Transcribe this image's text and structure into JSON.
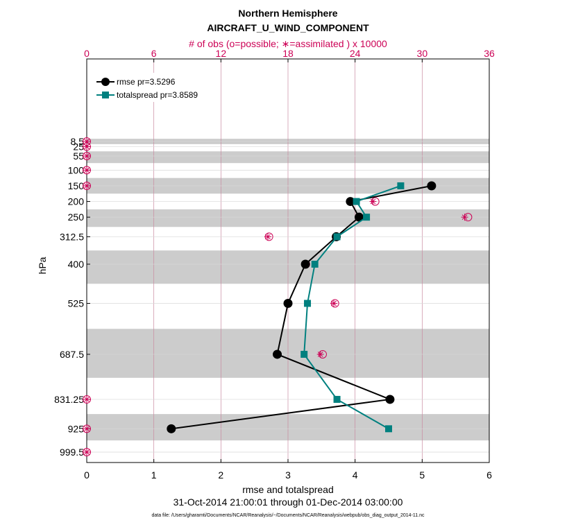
{
  "chart_data": {
    "type": "line",
    "title": "Northern Hemisphere",
    "subtitle": "AIRCRAFT_U_WIND_COMPONENT",
    "top_axis_label": "# of obs (o=possible; ∗=assimilated ) x 10000",
    "xlabel": "rmse and totalspread",
    "ylabel": "hPa",
    "xlim": [
      0,
      6
    ],
    "xticks": [
      "0",
      "1",
      "2",
      "3",
      "4",
      "5",
      "6"
    ],
    "top_xlim": [
      0,
      36
    ],
    "top_xticks": [
      "0",
      "6",
      "12",
      "18",
      "24",
      "30",
      "36"
    ],
    "levels": [
      8.5,
      25,
      55,
      100,
      150,
      200,
      250,
      312.5,
      400,
      525,
      687.5,
      831.25,
      925,
      999.5
    ],
    "level_labels": [
      "8.5",
      "25",
      "55",
      "100",
      "150",
      "200",
      "250",
      "312.5",
      "400",
      "525",
      "687.5",
      "831.25",
      "925",
      "999.5"
    ],
    "grey_bands_hpa": [
      [
        0,
        17
      ],
      [
        40,
        77.5
      ],
      [
        125,
        175
      ],
      [
        225,
        281.25
      ],
      [
        356.25,
        462.5
      ],
      [
        606.25,
        762.5
      ],
      [
        878.12,
        962.25
      ]
    ],
    "series": [
      {
        "name": "rmse",
        "legend": "rmse pr=3.5296",
        "color": "#000000",
        "marker": "circle",
        "levels": [
          150,
          200,
          250,
          312.5,
          400,
          525,
          687.5,
          831.25,
          925
        ],
        "values": [
          5.14,
          3.93,
          4.06,
          3.72,
          3.26,
          3.0,
          2.84,
          4.52,
          1.26
        ]
      },
      {
        "name": "totalspread",
        "legend": "totalspread pr=3.8589",
        "color": "#00807f",
        "marker": "square",
        "levels": [
          150,
          200,
          250,
          312.5,
          400,
          525,
          687.5,
          831.25,
          925
        ],
        "values": [
          4.68,
          4.02,
          4.17,
          3.73,
          3.4,
          3.29,
          3.24,
          3.73,
          4.5
        ]
      }
    ],
    "obs_possible": {
      "levels": [
        8.5,
        25,
        55,
        100,
        150,
        200,
        250,
        312.5,
        400,
        525,
        687.5,
        831.25,
        925,
        999.5
      ],
      "values_x10000": [
        0,
        0,
        0,
        0,
        0,
        25.8,
        34.1,
        16.3,
        19.6,
        22.2,
        21.1,
        0,
        0,
        0
      ]
    },
    "obs_assimilated": {
      "levels": [
        8.5,
        25,
        55,
        100,
        150,
        200,
        250,
        312.5,
        400,
        525,
        687.5,
        831.25,
        925,
        999.5
      ],
      "values_x10000": [
        0,
        0,
        0,
        0,
        0,
        25.6,
        33.8,
        16.2,
        19.5,
        22.1,
        20.9,
        0,
        0,
        0
      ]
    },
    "colors": {
      "obs": "#cc0055",
      "grid_top": "#c98aa0",
      "band": "#cccccc"
    },
    "footer": "31-Oct-2014 21:00:01 through 01-Dec-2014 03:00:00",
    "data_file": "data file: /Users/gharamti/Documents/NCAR/Reanalysis/~/Documents/NCAR/Reanalysis/webpub/obs_diag_output_2014-11.nc"
  }
}
